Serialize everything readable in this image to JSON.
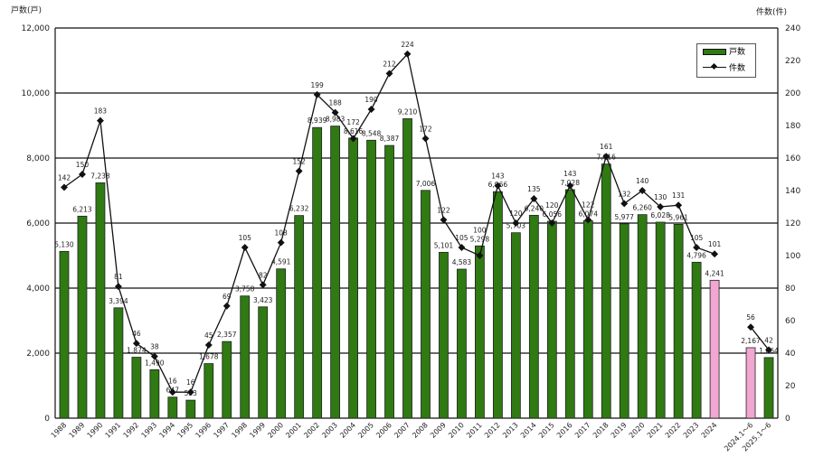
{
  "chart_data": {
    "type": "bar+line",
    "left_axis_title": "戸数(戸)",
    "right_axis_title": "件数(件)",
    "categories": [
      "1988",
      "1989",
      "1990",
      "1991",
      "1992",
      "1993",
      "1994",
      "1995",
      "1996",
      "1997",
      "1998",
      "1999",
      "2000",
      "2001",
      "2002",
      "2003",
      "2004",
      "2005",
      "2006",
      "2007",
      "2008",
      "2009",
      "2010",
      "2011",
      "2012",
      "2013",
      "2014",
      "2015",
      "2016",
      "2017",
      "2018",
      "2019",
      "2020",
      "2021",
      "2022",
      "2023",
      "2024",
      "",
      "2024.1～6",
      "2025.1～6"
    ],
    "series": [
      {
        "name": "戸数",
        "type": "bar",
        "axis": "left",
        "values": [
          5130,
          6213,
          7238,
          3394,
          1874,
          1490,
          647,
          553,
          1678,
          2357,
          3758,
          3423,
          4591,
          6232,
          8939,
          8983,
          8616,
          8548,
          8387,
          9210,
          7006,
          5101,
          4583,
          5298,
          6966,
          5703,
          6240,
          6056,
          7028,
          6074,
          7816,
          5977,
          6260,
          6028,
          5961,
          4796,
          4241,
          null,
          2167,
          1864
        ],
        "labels": [
          "5,130",
          "6,213",
          "7,238",
          "3,394",
          "1,874",
          "1,490",
          "647",
          "553",
          "1,678",
          "2,357",
          "3,758",
          "3,423",
          "4,591",
          "6,232",
          "8,939",
          "8,983",
          "8,616",
          "8,548",
          "8,387",
          "9,210",
          "7,006",
          "5,101",
          "4,583",
          "5,298",
          "6,966",
          "5,703",
          "6,240",
          "6,056",
          "7,028",
          "6,074",
          "7,816",
          "5,977",
          "6,260",
          "6,028",
          "5,961",
          "4,796",
          "4,241",
          "",
          "2,167",
          "1,864"
        ],
        "highlighted_categories": [
          "2024",
          "2024.1～6"
        ]
      },
      {
        "name": "件数",
        "type": "line",
        "axis": "right",
        "values": [
          142,
          150,
          183,
          81,
          46,
          38,
          16,
          16,
          45,
          69,
          105,
          82,
          108,
          152,
          199,
          188,
          172,
          190,
          212,
          224,
          172,
          122,
          105,
          100,
          143,
          120,
          135,
          120,
          143,
          122,
          161,
          132,
          140,
          130,
          131,
          105,
          101,
          null,
          56,
          42
        ]
      }
    ],
    "left_ylim": [
      0,
      12000
    ],
    "left_ticks": [
      "0",
      "2,000",
      "4,000",
      "6,000",
      "8,000",
      "10,000",
      "12,000"
    ],
    "right_ylim": [
      0,
      240
    ],
    "right_ticks": [
      "0",
      "20",
      "40",
      "60",
      "80",
      "100",
      "120",
      "140",
      "160",
      "180",
      "200",
      "220",
      "240"
    ],
    "grid": true,
    "legend": {
      "placement": "top-right",
      "entries": [
        "戸数",
        "件数"
      ]
    },
    "colors": {
      "bar": "#2f7a12",
      "bar_highlight": "#f2a6d2",
      "line": "#111111"
    }
  }
}
